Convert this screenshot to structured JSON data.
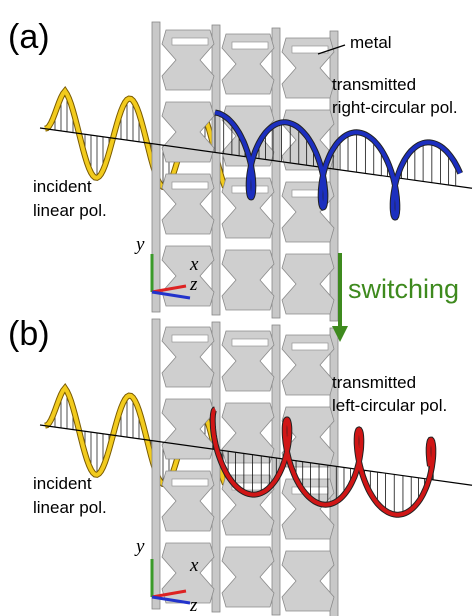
{
  "panels": [
    {
      "label": "(a)",
      "metal": "metal",
      "transmitted": [
        "transmitted",
        "right-circular pol."
      ],
      "incident": [
        "incident",
        "linear pol."
      ],
      "axes": {
        "y": "y",
        "x": "x",
        "z": "z"
      }
    },
    {
      "label": "(b)",
      "transmitted": [
        "transmitted",
        "left-circular pol."
      ],
      "incident": [
        "incident",
        "linear pol."
      ],
      "axes": {
        "y": "y",
        "x": "x",
        "z": "z"
      }
    }
  ],
  "switching": "switching"
}
